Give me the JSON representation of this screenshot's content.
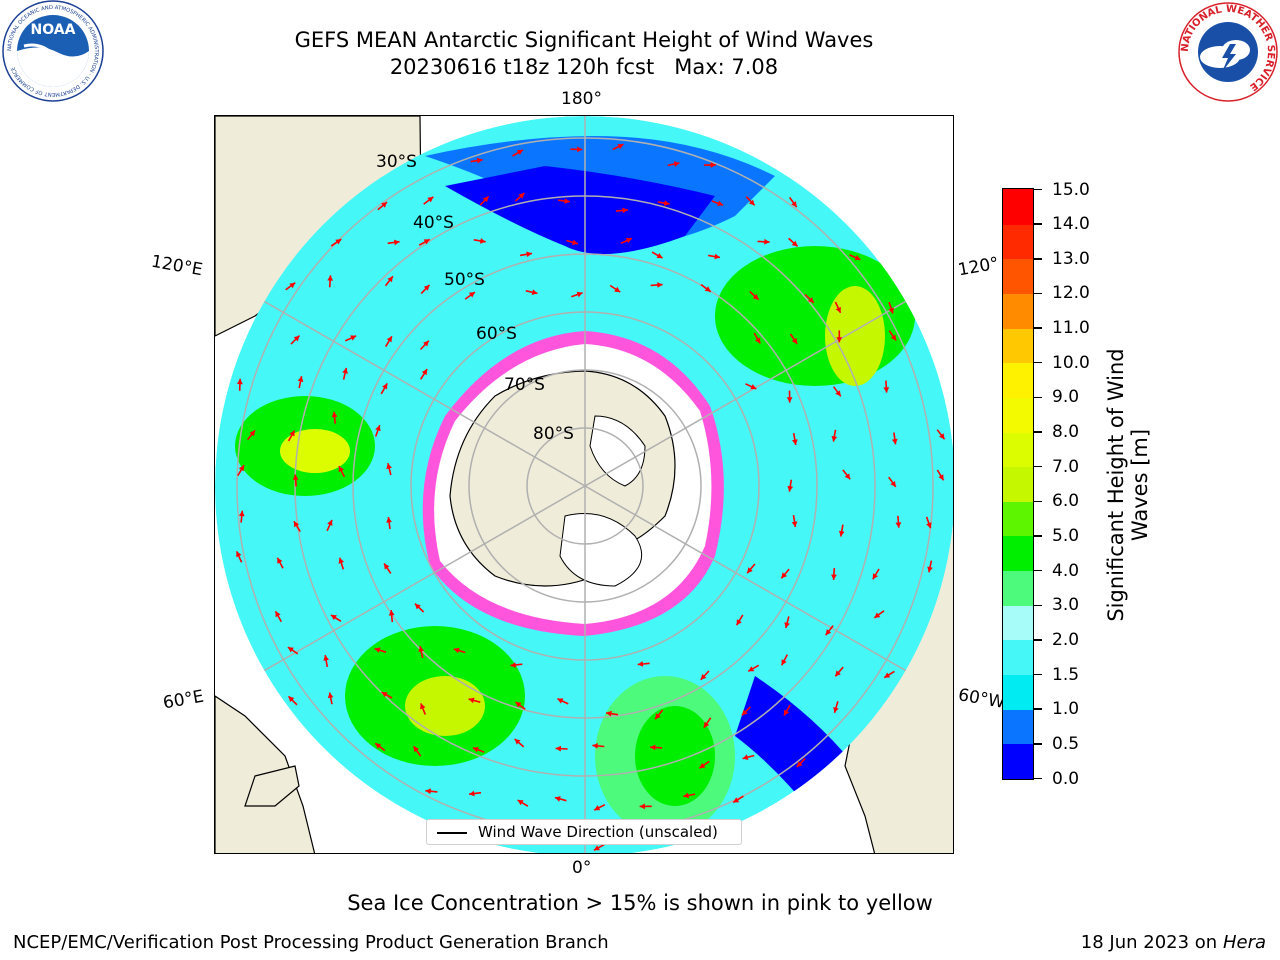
{
  "title_line1": "GEFS MEAN Antarctic Significant Height of Wind Waves",
  "title_line2": "20230616 t18z 120h fcst   Max: 7.08",
  "map_labels": {
    "lon_180": "180°",
    "lon_0": "0°",
    "lon_120E": "120°E",
    "lon_60E": "60°E",
    "lon_120W": "120°",
    "lon_60W": "60°W",
    "lat_30S": "30°S",
    "lat_40S": "40°S",
    "lat_50S": "50°S",
    "lat_60S": "60°S",
    "lat_70S": "70°S",
    "lat_80S": "80°S"
  },
  "legend_text": "Wind Wave Direction (unscaled)",
  "colorbar": {
    "label": "Significant Height of Wind Waves [m]",
    "ticks": [
      "0.0",
      "0.5",
      "1.0",
      "1.5",
      "2.0",
      "3.0",
      "4.0",
      "5.0",
      "6.0",
      "7.0",
      "8.0",
      "9.0",
      "10.0",
      "11.0",
      "12.0",
      "13.0",
      "14.0",
      "15.0"
    ],
    "colors": [
      "#0000ff",
      "#0a76ff",
      "#00ecf3",
      "#45f7f7",
      "#a7fcf9",
      "#4dfa7b",
      "#00ee00",
      "#5ef500",
      "#c4f700",
      "#dcfc00",
      "#f3fa00",
      "#fff200",
      "#ffc800",
      "#ff8c00",
      "#ff5500",
      "#ff2a00",
      "#ff0000"
    ]
  },
  "map_colors": {
    "land": "#efecd9",
    "ice": "#ffffff",
    "sea_ice": "#ff55dd",
    "arrows": "#ff0000",
    "grid": "#b0b0b0"
  },
  "footnote": "Sea Ice Concentration > 15% is shown in pink to yellow",
  "credit": "NCEP/EMC/Verification Post Processing Product Generation Branch",
  "stamp_date": "18 Jun 2023 on",
  "stamp_host": "Hera",
  "logos": {
    "noaa_text": "NOAA",
    "noaa_ring": "NATIONAL OCEANIC AND ATMOSPHERIC ADMINISTRATION · U.S. DEPARTMENT OF COMMERCE",
    "nws_ring": "NATIONAL WEATHER SERVICE"
  }
}
